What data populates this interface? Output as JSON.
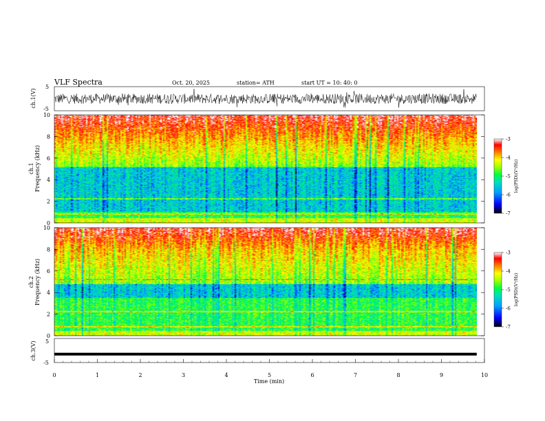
{
  "header": {
    "title": "VLF  Spectra",
    "date": "Oct. 20, 2025",
    "station": "station= ATH",
    "start": "start  UT  =    10: 40: 0"
  },
  "chart_data": [
    {
      "type": "line",
      "name": "ch1-waveform",
      "ylabel": "ch.1(V)",
      "xlim": [
        0,
        10
      ],
      "ylim": [
        -5,
        5
      ],
      "ytick_labels": [
        "5",
        "-5"
      ],
      "x_end": 9.82
    },
    {
      "type": "heatmap",
      "name": "ch1-spectrogram",
      "ylabel": "ch.1\nFrequency  (kHz)",
      "ylabel_lines": [
        "ch.1",
        "Frequency  (kHz)"
      ],
      "xlim": [
        0,
        10
      ],
      "ylim": [
        0,
        10
      ],
      "ytick_labels": [
        "0",
        "2",
        "4",
        "6",
        "8",
        "10"
      ],
      "colorbar": {
        "label": "log(PSD)(V²/Hz)",
        "range": [
          -7,
          -3
        ],
        "ticks": [
          "-3",
          "-4",
          "-5",
          "-6",
          "-7"
        ]
      },
      "low_power_band_khz": [
        1,
        5.2
      ],
      "high_power_above_khz": 7.5
    },
    {
      "type": "heatmap",
      "name": "ch2-spectrogram",
      "ylabel": "ch.2\nFrequency  (kHz)",
      "ylabel_lines": [
        "ch.2",
        "Frequency  (kHz)"
      ],
      "xlim": [
        0,
        10
      ],
      "ylim": [
        0,
        10
      ],
      "ytick_labels": [
        "0",
        "2",
        "4",
        "6",
        "8",
        "10"
      ],
      "colorbar": {
        "label": "log(PSD)(V²/Hz)",
        "range": [
          -7,
          -3
        ],
        "ticks": [
          "-3",
          "-4",
          "-5",
          "-6",
          "-7"
        ]
      },
      "low_power_band_khz": [
        3.5,
        4.8
      ],
      "high_power_above_khz": 8
    },
    {
      "type": "line",
      "name": "ch3-waveform",
      "ylabel": "ch.3(V)",
      "xlim": [
        0,
        10
      ],
      "ylim": [
        -5,
        5
      ],
      "ytick_labels": [
        "5",
        "-5"
      ],
      "x_end": 9.82,
      "level": -1.5,
      "xlabel": "Time  (min)",
      "xtick_labels": [
        "0",
        "1",
        "2",
        "3",
        "4",
        "5",
        "6",
        "7",
        "8",
        "9",
        "10"
      ]
    }
  ],
  "colors": {
    "colormap": [
      "#000000",
      "#0000ff",
      "#00a0ff",
      "#00e0c0",
      "#00ff40",
      "#a0ff00",
      "#ffff00",
      "#ff8000",
      "#ff0000",
      "#ffffff"
    ]
  }
}
